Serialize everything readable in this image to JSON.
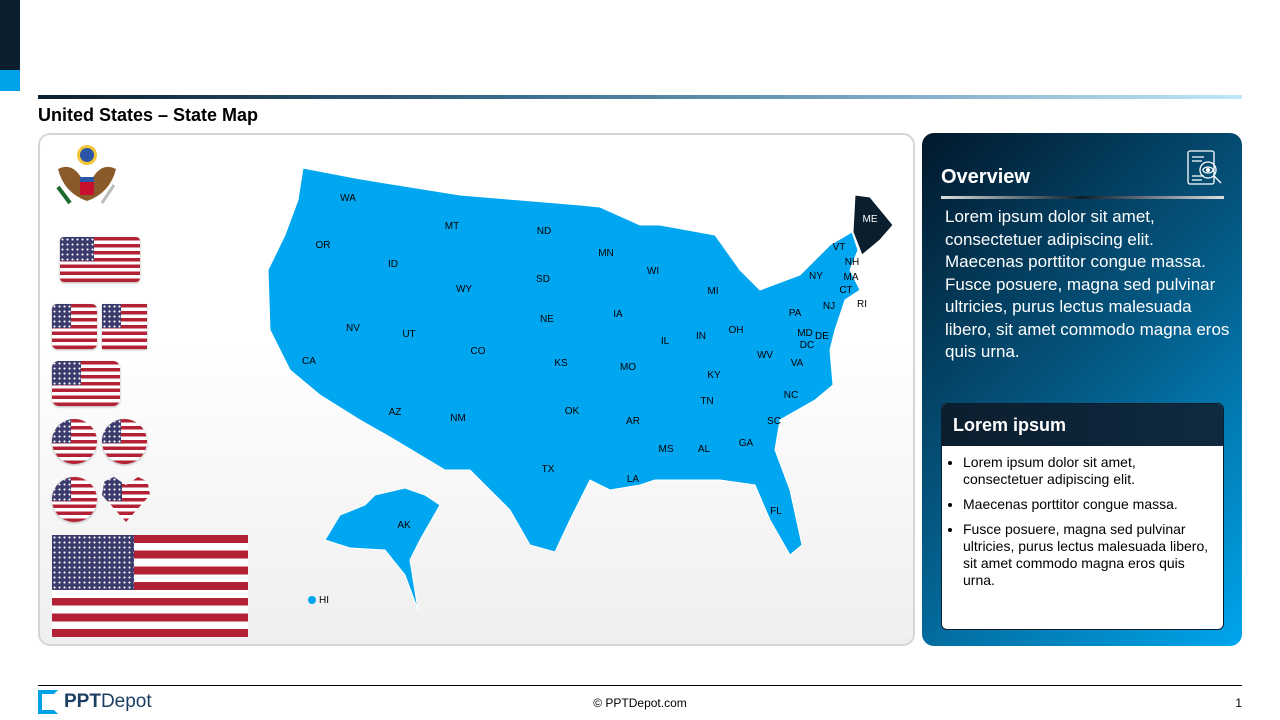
{
  "slide": {
    "title": "United States – State Map",
    "page_number": "1"
  },
  "map": {
    "base_color": "#00a6f0",
    "highlight_color": "#0b1e2e",
    "highlighted": [
      "ME"
    ],
    "states": [
      "WA",
      "OR",
      "CA",
      "ID",
      "NV",
      "MT",
      "WY",
      "UT",
      "AZ",
      "CO",
      "NM",
      "ND",
      "SD",
      "NE",
      "KS",
      "OK",
      "TX",
      "MN",
      "IA",
      "MO",
      "AR",
      "LA",
      "WI",
      "IL",
      "MI",
      "IN",
      "OH",
      "KY",
      "TN",
      "MS",
      "AL",
      "GA",
      "FL",
      "SC",
      "NC",
      "VA",
      "WV",
      "PA",
      "NY",
      "VT",
      "NH",
      "ME",
      "MA",
      "CT",
      "RI",
      "NJ",
      "MD",
      "DE",
      "DC",
      "AK",
      "HI"
    ]
  },
  "icons": [
    "us-seal-icon",
    "waving-flag-icon",
    "square-flag-icon",
    "flat-flag-icon",
    "rounded-flag-icon",
    "circle-flag-icon",
    "heart-flag-icon",
    "flag-icon"
  ],
  "overview": {
    "title": "Overview",
    "icon": "document-search-icon",
    "text": "Lorem ipsum dolor sit amet, consectetuer adipiscing elit. Maecenas porttitor congue massa. Fusce posuere, magna sed pulvinar ultricies, purus lectus malesuada libero, sit amet commodo magna eros quis urna."
  },
  "box": {
    "title": "Lorem ipsum",
    "bullets": [
      "Lorem ipsum dolor sit amet, consectetuer adipiscing elit.",
      "Maecenas porttitor congue massa.",
      "Fusce posuere, magna sed pulvinar ultricies, purus lectus malesuada libero, sit amet commodo magna eros quis urna."
    ]
  },
  "footer": {
    "logo_bold": "PPT",
    "logo_light": "Depot",
    "copyright": "© PPTDepot.com"
  }
}
